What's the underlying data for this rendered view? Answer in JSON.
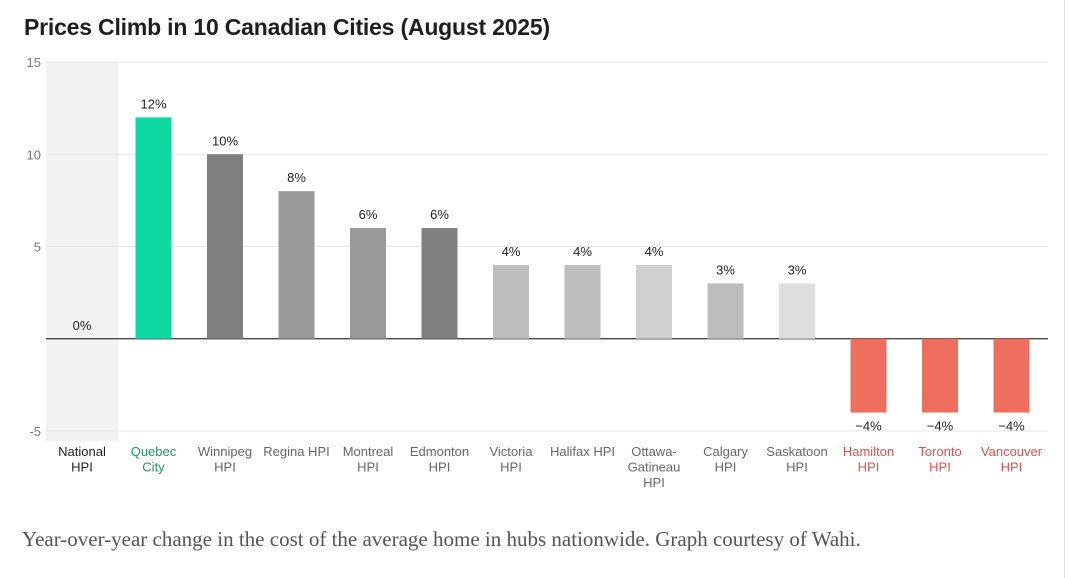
{
  "chart_data": {
    "type": "bar",
    "title": "Prices Climb in 10 Canadian Cities (August 2025)",
    "xlabel": "",
    "ylabel": "",
    "ylim": [
      -5,
      15
    ],
    "yticks": [
      15,
      10,
      5,
      -5
    ],
    "grid": true,
    "categories": [
      [
        "National",
        "HPI"
      ],
      [
        "Quebec",
        "City"
      ],
      [
        "Winnipeg",
        "HPI"
      ],
      [
        "Regina HPI"
      ],
      [
        "Montreal",
        "HPI"
      ],
      [
        "Edmonton",
        "HPI"
      ],
      [
        "Victoria",
        "HPI"
      ],
      [
        "Halifax HPI"
      ],
      [
        "Ottawa-",
        "Gatineau",
        "HPI"
      ],
      [
        "Calgary",
        "HPI"
      ],
      [
        "Saskatoon",
        "HPI"
      ],
      [
        "Hamilton",
        "HPI"
      ],
      [
        "Toronto",
        "HPI"
      ],
      [
        "Vancouver",
        "HPI"
      ]
    ],
    "values": [
      0,
      12,
      10,
      8,
      6,
      6,
      4,
      4,
      4,
      3,
      3,
      -4,
      -4,
      -4
    ],
    "value_labels": [
      "0%",
      "12%",
      "10%",
      "8%",
      "6%",
      "6%",
      "4%",
      "4%",
      "4%",
      "3%",
      "3%",
      "−4%",
      "−4%",
      "−4%"
    ],
    "bar_colors": [
      "#f2f2f2",
      "#0fd9a3",
      "#7f7f7f",
      "#999999",
      "#999999",
      "#7f7f7f",
      "#bdbdbd",
      "#bdbdbd",
      "#d0d0d0",
      "#bdbdbd",
      "#dedede",
      "#ef6f5f",
      "#ef6f5f",
      "#ef6f5f"
    ],
    "label_colors": [
      "#222222",
      "#23955f",
      "#666666",
      "#666666",
      "#666666",
      "#666666",
      "#666666",
      "#666666",
      "#666666",
      "#666666",
      "#666666",
      "#d9534f",
      "#d9534f",
      "#d9534f"
    ],
    "highlight_category_index": 0
  },
  "caption": "Year-over-year change in the cost of the average home in hubs nationwide. Graph courtesy of Wahi.",
  "colors": {
    "title": "#1e1e1e",
    "gridline": "#e6e6e6",
    "zero_line": "#333333",
    "tick_label": "#777777",
    "value_label": "#222222",
    "highlight_band": "#f2f2f2"
  }
}
